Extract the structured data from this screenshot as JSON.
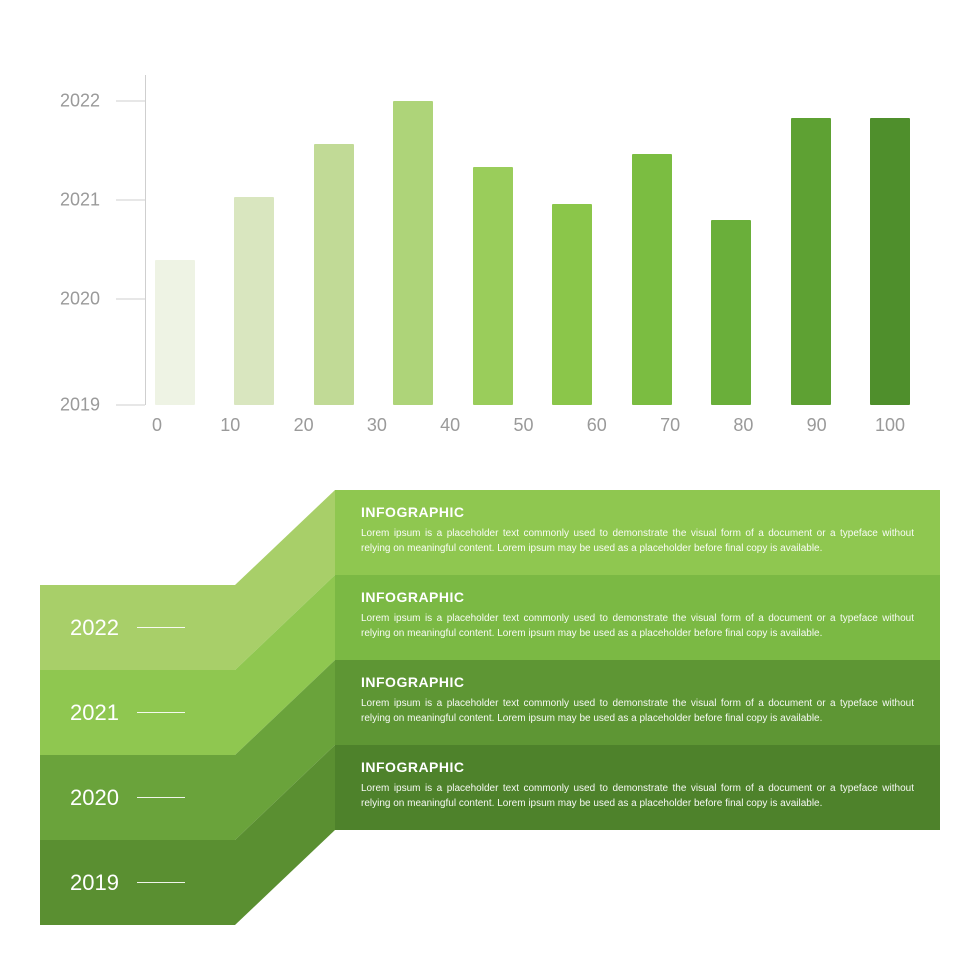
{
  "chart": {
    "type": "bar",
    "y_ticks": [
      "2022",
      "2021",
      "2020",
      "2019"
    ],
    "y_tick_positions_pct": [
      8,
      38,
      68,
      100
    ],
    "x_ticks": [
      "0",
      "10",
      "20",
      "30",
      "40",
      "50",
      "60",
      "70",
      "80",
      "90",
      "100"
    ],
    "bar_heights_pct": [
      44,
      63,
      79,
      92,
      72,
      61,
      76,
      56,
      87,
      87
    ],
    "bar_colors": [
      "#eef3e4",
      "#d9e6bf",
      "#c1da96",
      "#aed479",
      "#9acd5b",
      "#8bc64a",
      "#7bbd41",
      "#6aaf3a",
      "#5ea133",
      "#4f8f2c"
    ],
    "axis_color": "#cfcfcf",
    "label_color": "#9a9a9a",
    "label_fontsize": 18,
    "background": "#ffffff"
  },
  "infographic": {
    "year_blocks": [
      {
        "label": "2022",
        "bg": "#a8cf69"
      },
      {
        "label": "2021",
        "bg": "#8fc750"
      },
      {
        "label": "2020",
        "bg": "#6aa33b"
      },
      {
        "label": "2019",
        "bg": "#5a8f31"
      }
    ],
    "panels": [
      {
        "title": "INFOGRAPHIC",
        "body": "Lorem ipsum is a placeholder text commonly used to demonstrate the visual form of a document or a typeface without relying on meaningful content. Lorem ipsum may be used as a placeholder before final copy is available.",
        "bg": "#8fc750"
      },
      {
        "title": "INFOGRAPHIC",
        "body": "Lorem ipsum is a placeholder text commonly used to demonstrate the visual form of a document or a typeface without relying on meaningful content. Lorem ipsum may be used as a placeholder before final copy is available.",
        "bg": "#7bb944"
      },
      {
        "title": "INFOGRAPHIC",
        "body": "Lorem ipsum is a placeholder text commonly used to demonstrate the visual form of a document or a typeface without relying on meaningful content. Lorem ipsum may be used as a placeholder before final copy is available.",
        "bg": "#5e9634"
      },
      {
        "title": "INFOGRAPHIC",
        "body": "Lorem ipsum is a placeholder text commonly used to demonstrate the visual form of a document or a typeface without relying on meaningful content. Lorem ipsum may be used as a placeholder before final copy is available.",
        "bg": "#4e822b"
      }
    ],
    "connector_colors": [
      "#a8cf69",
      "#8fc750",
      "#6aa33b",
      "#5a8f31"
    ],
    "year_fontsize": 22,
    "title_fontsize": 14,
    "body_fontsize": 10
  }
}
